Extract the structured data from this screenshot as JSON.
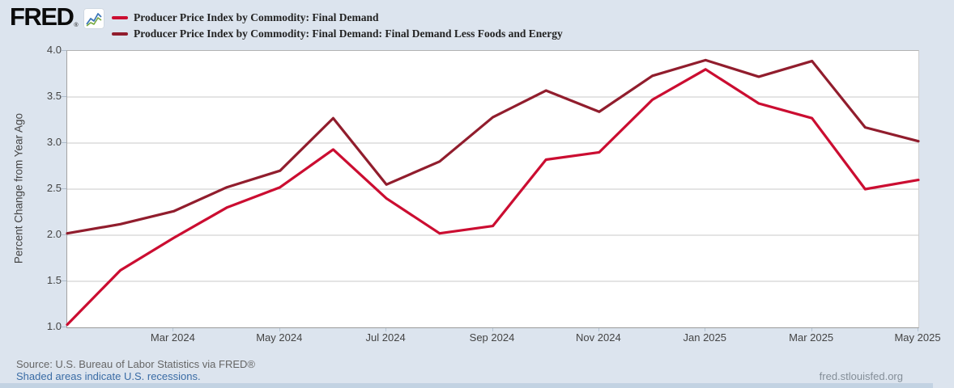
{
  "header": {
    "logo_text": "FRED",
    "logo_registered": "®"
  },
  "legend": [
    {
      "label": "Producer Price Index by Commodity: Final Demand",
      "color": "#cb0d31"
    },
    {
      "label": "Producer Price Index by Commodity: Final Demand: Final Demand Less Foods and Energy",
      "color": "#911d2d"
    }
  ],
  "chart_data": {
    "type": "line",
    "title": "",
    "xlabel": "",
    "ylabel": "Percent Change from Year Ago",
    "ylim": [
      1.0,
      4.0
    ],
    "ytick_step": 0.5,
    "yticks": [
      "4.0",
      "3.5",
      "3.0",
      "2.5",
      "2.0",
      "1.5",
      "1.0"
    ],
    "grid": true,
    "legend_position": "top-left",
    "x": [
      "Jan 2024",
      "Feb 2024",
      "Mar 2024",
      "Apr 2024",
      "May 2024",
      "Jun 2024",
      "Jul 2024",
      "Aug 2024",
      "Sep 2024",
      "Oct 2024",
      "Nov 2024",
      "Dec 2024",
      "Jan 2025",
      "Feb 2025",
      "Mar 2025",
      "Apr 2025",
      "May 2025"
    ],
    "x_tick_labels": [
      "Mar 2024",
      "May 2024",
      "Jul 2024",
      "Sep 2024",
      "Nov 2024",
      "Jan 2025",
      "Mar 2025",
      "May 2025"
    ],
    "series": [
      {
        "name": "Producer Price Index by Commodity: Final Demand",
        "color": "#cb0d31",
        "values": [
          1.03,
          1.62,
          1.97,
          2.3,
          2.52,
          2.93,
          2.4,
          2.02,
          2.1,
          2.82,
          2.9,
          3.47,
          3.8,
          3.43,
          3.27,
          2.5,
          2.6
        ]
      },
      {
        "name": "Producer Price Index by Commodity: Final Demand: Final Demand Less Foods and Energy",
        "color": "#911d2d",
        "values": [
          2.02,
          2.12,
          2.26,
          2.52,
          2.7,
          3.27,
          2.55,
          2.8,
          3.28,
          3.57,
          3.34,
          3.73,
          3.9,
          3.72,
          3.89,
          3.17,
          3.02
        ]
      }
    ]
  },
  "footer": {
    "source": "Source: U.S. Bureau of Labor Statistics via FRED®",
    "recessions_note": "Shaded areas indicate U.S. recessions.",
    "site": "fred.stlouisfed.org"
  }
}
